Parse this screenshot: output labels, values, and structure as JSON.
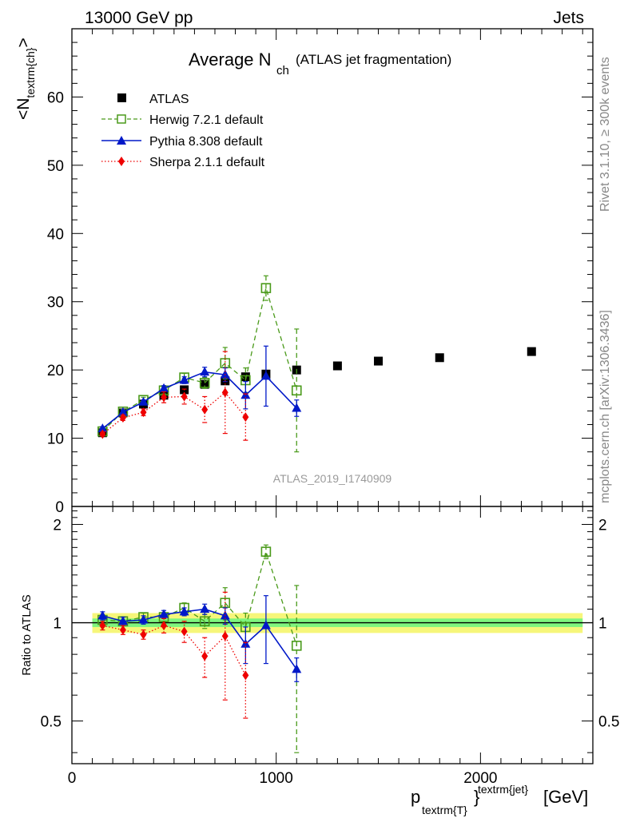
{
  "header": {
    "left": "13000 GeV pp",
    "right": "Jets"
  },
  "titles": {
    "title_main": "Average N",
    "title_sub": "ch",
    "title_note": "(ATLAS jet fragmentation)"
  },
  "side_labels": {
    "rivet": "Rivet 3.1.10, ≥ 300k events",
    "mcplots": "mcplots.cern.ch [arXiv:1306.3436]"
  },
  "watermark": "ATLAS_2019_I1740909",
  "axes": {
    "ylabel_main_pre": "<N",
    "ylabel_main_sub": "textrm{ch}",
    "ylabel_main_post": ">",
    "ylabel_ratio": "Ratio to ATLAS",
    "xlabel_p": "p",
    "xlabel_sub": "textrm{T}",
    "xlabel_sup": "textrm{jet}",
    "xlabel_brace": "}",
    "xlabel_unit": "[GeV]"
  },
  "legend": {
    "atlas": "ATLAS",
    "herwig": "Herwig 7.2.1 default",
    "pythia": "Pythia 8.308 default",
    "sherpa": "Sherpa 2.1.1 default"
  },
  "colors": {
    "atlas": "#000000",
    "herwig": "#4a9a1a",
    "pythia": "#0018c8",
    "sherpa": "#ee0000",
    "band_inner": "#7ef57e",
    "band_outer": "#f6f67a"
  },
  "chart_data": [
    {
      "type": "scatter",
      "panel": "main",
      "xlim": [
        0,
        2550
      ],
      "ylim": [
        0,
        70
      ],
      "xticks": [
        0,
        1000,
        2000
      ],
      "yticks": [
        0,
        10,
        20,
        30,
        40,
        50,
        60
      ],
      "ytick_labels": [
        "0",
        "10",
        "20",
        "30",
        "40",
        "50",
        "60"
      ],
      "grid": false,
      "legend_position": "top-left",
      "series": [
        {
          "name": "ATLAS",
          "style": "markers",
          "x": [
            150,
            250,
            350,
            450,
            550,
            650,
            750,
            850,
            950,
            1100,
            1300,
            1500,
            1800,
            2250
          ],
          "y": [
            10.8,
            13.7,
            15.0,
            16.3,
            17.1,
            17.9,
            18.4,
            19.0,
            19.4,
            20.0,
            20.6,
            21.3,
            21.8,
            22.7
          ],
          "err": [
            0.3,
            0.3,
            0.3,
            0.3,
            0.3,
            0.3,
            0.3,
            0.3,
            0.3,
            0.3,
            0.3,
            0.3,
            0.3,
            0.3
          ]
        },
        {
          "name": "Herwig 7.2.1 default",
          "style": "dashed-open-square",
          "x": [
            150,
            250,
            350,
            450,
            550,
            650,
            750,
            850,
            950,
            1100
          ],
          "y": [
            11.0,
            13.9,
            15.6,
            17.0,
            18.9,
            18.1,
            21.0,
            18.5,
            32.0,
            17.0
          ],
          "err": [
            0.3,
            0.3,
            0.4,
            0.5,
            0.6,
            0.8,
            2.3,
            1.8,
            1.8,
            9.0
          ]
        },
        {
          "name": "Pythia 8.308 default",
          "style": "solid-triangle",
          "x": [
            150,
            250,
            350,
            450,
            550,
            650,
            750,
            850,
            950,
            1100
          ],
          "y": [
            11.4,
            13.8,
            15.3,
            17.3,
            18.5,
            19.7,
            19.3,
            16.3,
            19.1,
            14.4
          ],
          "err": [
            0.3,
            0.3,
            0.3,
            0.4,
            0.5,
            0.7,
            1.0,
            2.0,
            4.4,
            1.2
          ]
        },
        {
          "name": "Sherpa 2.1.1 default",
          "style": "dotted-diamond",
          "x": [
            150,
            250,
            350,
            450,
            550,
            650,
            750,
            850
          ],
          "y": [
            10.6,
            13.0,
            13.8,
            16.0,
            16.1,
            14.2,
            16.7,
            13.1
          ],
          "err": [
            0.3,
            0.4,
            0.5,
            0.8,
            1.1,
            1.9,
            6.0,
            3.4
          ]
        }
      ]
    },
    {
      "type": "scatter",
      "panel": "ratio",
      "xlim": [
        0,
        2550
      ],
      "ylim": [
        0.37,
        2.27
      ],
      "xticks": [
        0,
        1000,
        2000
      ],
      "xtick_labels": [
        "0",
        "1000",
        "2000"
      ],
      "yticks": [
        0.5,
        1,
        2
      ],
      "ytick_labels": [
        "0.5",
        "1",
        "2"
      ],
      "grid": false,
      "band": {
        "x": [
          100,
          2500
        ],
        "inner": 0.03,
        "outer": 0.07
      },
      "series": [
        {
          "name": "Herwig 7.2.1 default",
          "x": [
            150,
            250,
            350,
            450,
            550,
            650,
            750,
            850,
            950,
            1100
          ],
          "y": [
            1.02,
            1.01,
            1.04,
            1.04,
            1.11,
            1.01,
            1.15,
            0.97,
            1.65,
            0.85
          ],
          "err": [
            0.03,
            0.03,
            0.03,
            0.03,
            0.04,
            0.05,
            0.13,
            0.1,
            0.08,
            0.45
          ]
        },
        {
          "name": "Pythia 8.308 default",
          "x": [
            150,
            250,
            350,
            450,
            550,
            650,
            750,
            850,
            950,
            1100
          ],
          "y": [
            1.05,
            1.01,
            1.02,
            1.06,
            1.08,
            1.1,
            1.05,
            0.86,
            0.98,
            0.72
          ],
          "err": [
            0.03,
            0.03,
            0.03,
            0.03,
            0.03,
            0.04,
            0.06,
            0.11,
            0.23,
            0.06
          ]
        },
        {
          "name": "Sherpa 2.1.1 default",
          "x": [
            150,
            250,
            350,
            450,
            550,
            650,
            750,
            850
          ],
          "y": [
            0.98,
            0.95,
            0.92,
            0.98,
            0.94,
            0.79,
            0.91,
            0.69
          ],
          "err": [
            0.03,
            0.03,
            0.03,
            0.05,
            0.07,
            0.11,
            0.33,
            0.18
          ]
        }
      ]
    }
  ]
}
